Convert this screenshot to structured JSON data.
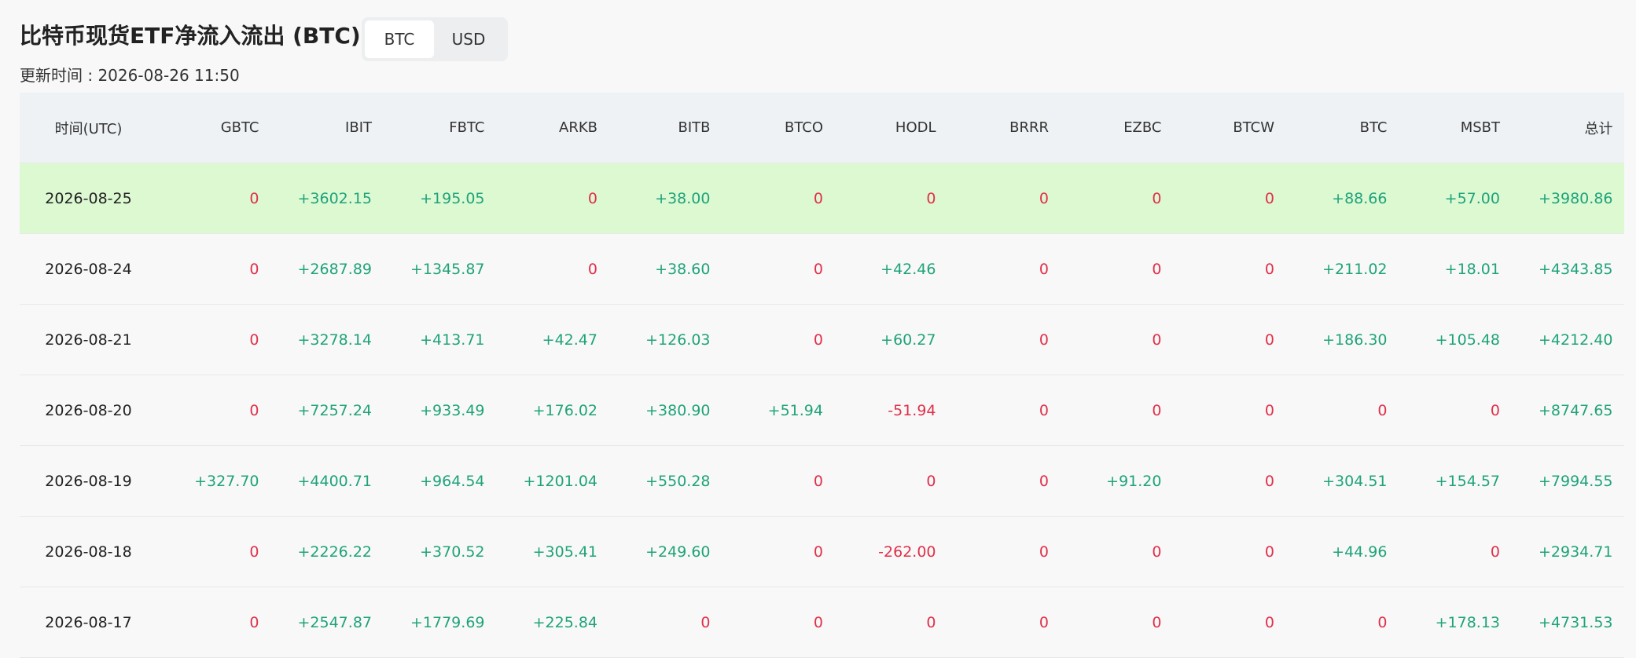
{
  "header": {
    "title": "比特币现货ETF净流入流出 (BTC)",
    "toggle": [
      "BTC",
      "USD"
    ],
    "updated": "更新时间 : 2026-08-26 11:50"
  },
  "table": {
    "columns": [
      "时间(UTC)",
      "GBTC",
      "IBIT",
      "FBTC",
      "ARKB",
      "BITB",
      "BTCO",
      "HODL",
      "BRRR",
      "EZBC",
      "BTCW",
      "BTC",
      "MSBT",
      "总计"
    ],
    "rows": [
      [
        "2026-08-25",
        "0",
        "+3602.15",
        "+195.05",
        "0",
        "+38.00",
        "0",
        "0",
        "0",
        "0",
        "0",
        "+88.66",
        "+57.00",
        "+3980.86"
      ],
      [
        "2026-08-24",
        "0",
        "+2687.89",
        "+1345.87",
        "0",
        "+38.60",
        "0",
        "+42.46",
        "0",
        "0",
        "0",
        "+211.02",
        "+18.01",
        "+4343.85"
      ],
      [
        "2026-08-21",
        "0",
        "+3278.14",
        "+413.71",
        "+42.47",
        "+126.03",
        "0",
        "+60.27",
        "0",
        "0",
        "0",
        "+186.30",
        "+105.48",
        "+4212.40"
      ],
      [
        "2026-08-20",
        "0",
        "+7257.24",
        "+933.49",
        "+176.02",
        "+380.90",
        "+51.94",
        "-51.94",
        "0",
        "0",
        "0",
        "0",
        "0",
        "+8747.65"
      ],
      [
        "2026-08-19",
        "+327.70",
        "+4400.71",
        "+964.54",
        "+1201.04",
        "+550.28",
        "0",
        "0",
        "0",
        "+91.20",
        "0",
        "+304.51",
        "+154.57",
        "+7994.55"
      ],
      [
        "2026-08-18",
        "0",
        "+2226.22",
        "+370.52",
        "+305.41",
        "+249.60",
        "0",
        "-262.00",
        "0",
        "0",
        "0",
        "+44.96",
        "0",
        "+2934.71"
      ],
      [
        "2026-08-17",
        "0",
        "+2547.87",
        "+1779.69",
        "+225.84",
        "0",
        "0",
        "0",
        "0",
        "0",
        "0",
        "0",
        "+178.13",
        "+4731.53"
      ]
    ]
  }
}
